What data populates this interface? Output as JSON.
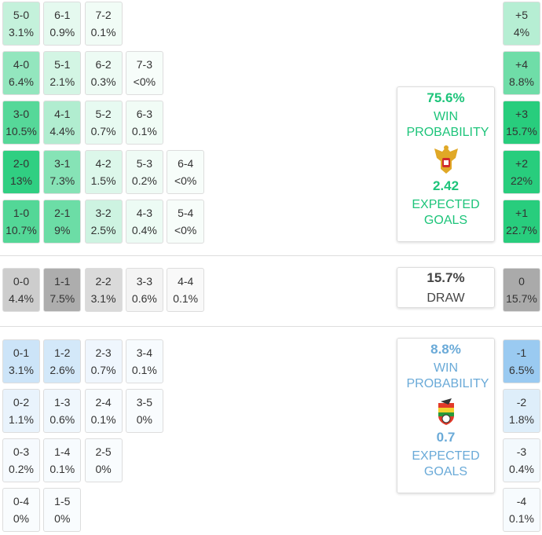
{
  "home": {
    "rows": [
      [
        {
          "score": "5-0",
          "prob": "3.1%"
        },
        {
          "score": "6-1",
          "prob": "0.9%"
        },
        {
          "score": "7-2",
          "prob": "0.1%"
        }
      ],
      [
        {
          "score": "4-0",
          "prob": "6.4%"
        },
        {
          "score": "5-1",
          "prob": "2.1%"
        },
        {
          "score": "6-2",
          "prob": "0.3%"
        },
        {
          "score": "7-3",
          "prob": "<0%"
        }
      ],
      [
        {
          "score": "3-0",
          "prob": "10.5%"
        },
        {
          "score": "4-1",
          "prob": "4.4%"
        },
        {
          "score": "5-2",
          "prob": "0.7%"
        },
        {
          "score": "6-3",
          "prob": "0.1%"
        }
      ],
      [
        {
          "score": "2-0",
          "prob": "13%"
        },
        {
          "score": "3-1",
          "prob": "7.3%"
        },
        {
          "score": "4-2",
          "prob": "1.5%"
        },
        {
          "score": "5-3",
          "prob": "0.2%"
        },
        {
          "score": "6-4",
          "prob": "<0%"
        }
      ],
      [
        {
          "score": "1-0",
          "prob": "10.7%"
        },
        {
          "score": "2-1",
          "prob": "9%"
        },
        {
          "score": "3-2",
          "prob": "2.5%"
        },
        {
          "score": "4-3",
          "prob": "0.4%"
        },
        {
          "score": "5-4",
          "prob": "<0%"
        }
      ]
    ],
    "margins": [
      {
        "label": "+5",
        "prob": "4%"
      },
      {
        "label": "+4",
        "prob": "8.8%"
      },
      {
        "label": "+3",
        "prob": "15.7%"
      },
      {
        "label": "+2",
        "prob": "22%"
      },
      {
        "label": "+1",
        "prob": "22.7%"
      }
    ],
    "summary": {
      "win_prob": "75.6%",
      "win_label": "WIN PROBABILITY",
      "xg": "2.42",
      "xg_label": "EXPECTED GOALS"
    }
  },
  "draw": {
    "rows": [
      [
        {
          "score": "0-0",
          "prob": "4.4%"
        },
        {
          "score": "1-1",
          "prob": "7.5%"
        },
        {
          "score": "2-2",
          "prob": "3.1%"
        },
        {
          "score": "3-3",
          "prob": "0.6%"
        },
        {
          "score": "4-4",
          "prob": "0.1%"
        }
      ]
    ],
    "margins": [
      {
        "label": "0",
        "prob": "15.7%"
      }
    ],
    "summary": {
      "prob": "15.7%",
      "label": "DRAW"
    }
  },
  "away": {
    "rows": [
      [
        {
          "score": "0-1",
          "prob": "3.1%"
        },
        {
          "score": "1-2",
          "prob": "2.6%"
        },
        {
          "score": "2-3",
          "prob": "0.7%"
        },
        {
          "score": "3-4",
          "prob": "0.1%"
        }
      ],
      [
        {
          "score": "0-2",
          "prob": "1.1%"
        },
        {
          "score": "1-3",
          "prob": "0.6%"
        },
        {
          "score": "2-4",
          "prob": "0.1%"
        },
        {
          "score": "3-5",
          "prob": "0%"
        }
      ],
      [
        {
          "score": "0-3",
          "prob": "0.2%"
        },
        {
          "score": "1-4",
          "prob": "0.1%"
        },
        {
          "score": "2-5",
          "prob": "0%"
        }
      ],
      [
        {
          "score": "0-4",
          "prob": "0%"
        },
        {
          "score": "1-5",
          "prob": "0%"
        }
      ]
    ],
    "margins": [
      {
        "label": "-1",
        "prob": "6.5%"
      },
      {
        "label": "-2",
        "prob": "1.8%"
      },
      {
        "label": "-3",
        "prob": "0.4%"
      },
      {
        "label": "-4",
        "prob": "0.1%"
      }
    ],
    "summary": {
      "win_prob": "8.8%",
      "win_label": "WIN PROBABILITY",
      "xg": "0.7",
      "xg_label": "EXPECTED GOALS"
    }
  }
}
